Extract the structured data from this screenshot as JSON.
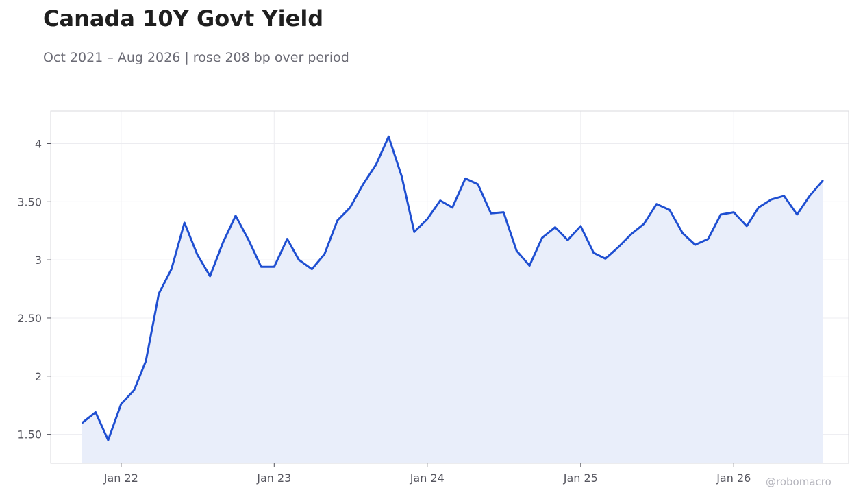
{
  "header": {
    "title": "Canada 10Y Govt Yield",
    "subtitle": "Oct 2021 – Aug 2026 | rose 208 bp over period"
  },
  "watermark": "@robomacro",
  "colors": {
    "line": "#1f4fd1",
    "fill": "#e9eefa",
    "grid": "#ececf0",
    "frame": "#dadade"
  },
  "chart_data": {
    "type": "area",
    "title": "Canada 10Y Govt Yield",
    "xlabel": "",
    "ylabel": "",
    "grid": true,
    "ylim": [
      1.25,
      4.28
    ],
    "xlim": [
      "2021-07-17",
      "2026-10-02"
    ],
    "x_ticks": [
      {
        "date": "2022-01-01",
        "label": "Jan 22"
      },
      {
        "date": "2023-01-01",
        "label": "Jan 23"
      },
      {
        "date": "2024-01-01",
        "label": "Jan 24"
      },
      {
        "date": "2025-01-01",
        "label": "Jan 25"
      },
      {
        "date": "2026-01-01",
        "label": "Jan 26"
      }
    ],
    "y_ticks": [
      {
        "value": 1.5,
        "label": "1.50"
      },
      {
        "value": 2,
        "label": "2"
      },
      {
        "value": 2.5,
        "label": "2.50"
      },
      {
        "value": 3,
        "label": "3"
      },
      {
        "value": 3.5,
        "label": "3.50"
      },
      {
        "value": 4,
        "label": "4"
      }
    ],
    "series": [
      {
        "x": [
          "2021-10-01",
          "2021-11-01",
          "2021-12-01",
          "2022-01-01",
          "2022-02-01",
          "2022-03-01",
          "2022-04-01",
          "2022-05-01",
          "2022-06-01",
          "2022-07-01",
          "2022-08-01",
          "2022-09-01",
          "2022-10-01",
          "2022-11-01",
          "2022-12-01",
          "2023-01-01",
          "2023-02-01",
          "2023-03-01",
          "2023-04-01",
          "2023-05-01",
          "2023-06-01",
          "2023-07-01",
          "2023-08-01",
          "2023-09-01",
          "2023-10-01",
          "2023-11-01",
          "2023-12-01",
          "2024-01-01",
          "2024-02-01",
          "2024-03-01",
          "2024-04-01",
          "2024-05-01",
          "2024-06-01",
          "2024-07-01",
          "2024-08-01",
          "2024-09-01",
          "2024-10-01",
          "2024-11-01",
          "2024-12-01",
          "2025-01-01",
          "2025-02-01",
          "2025-03-01",
          "2025-04-01",
          "2025-05-01",
          "2025-06-01",
          "2025-07-01",
          "2025-08-01",
          "2025-09-01",
          "2025-10-01",
          "2025-11-01",
          "2025-12-01",
          "2026-01-01",
          "2026-02-01",
          "2026-03-01",
          "2026-04-01",
          "2026-05-01",
          "2026-06-01",
          "2026-07-01",
          "2026-08-01"
        ],
        "values": [
          1.6,
          1.69,
          1.45,
          1.76,
          1.88,
          2.13,
          2.71,
          2.92,
          3.32,
          3.05,
          2.86,
          3.15,
          3.38,
          3.17,
          2.94,
          2.94,
          3.18,
          3.0,
          2.92,
          3.05,
          3.34,
          3.45,
          3.65,
          3.82,
          4.06,
          3.72,
          3.24,
          3.35,
          3.51,
          3.45,
          3.7,
          3.65,
          3.4,
          3.41,
          3.08,
          2.95,
          3.19,
          3.28,
          3.17,
          3.29,
          3.06,
          3.01,
          3.11,
          3.22,
          3.31,
          3.48,
          3.43,
          3.23,
          3.13,
          3.18,
          3.39,
          3.41,
          3.29,
          3.45,
          3.52,
          3.55,
          3.39,
          3.55,
          3.68
        ]
      }
    ]
  }
}
